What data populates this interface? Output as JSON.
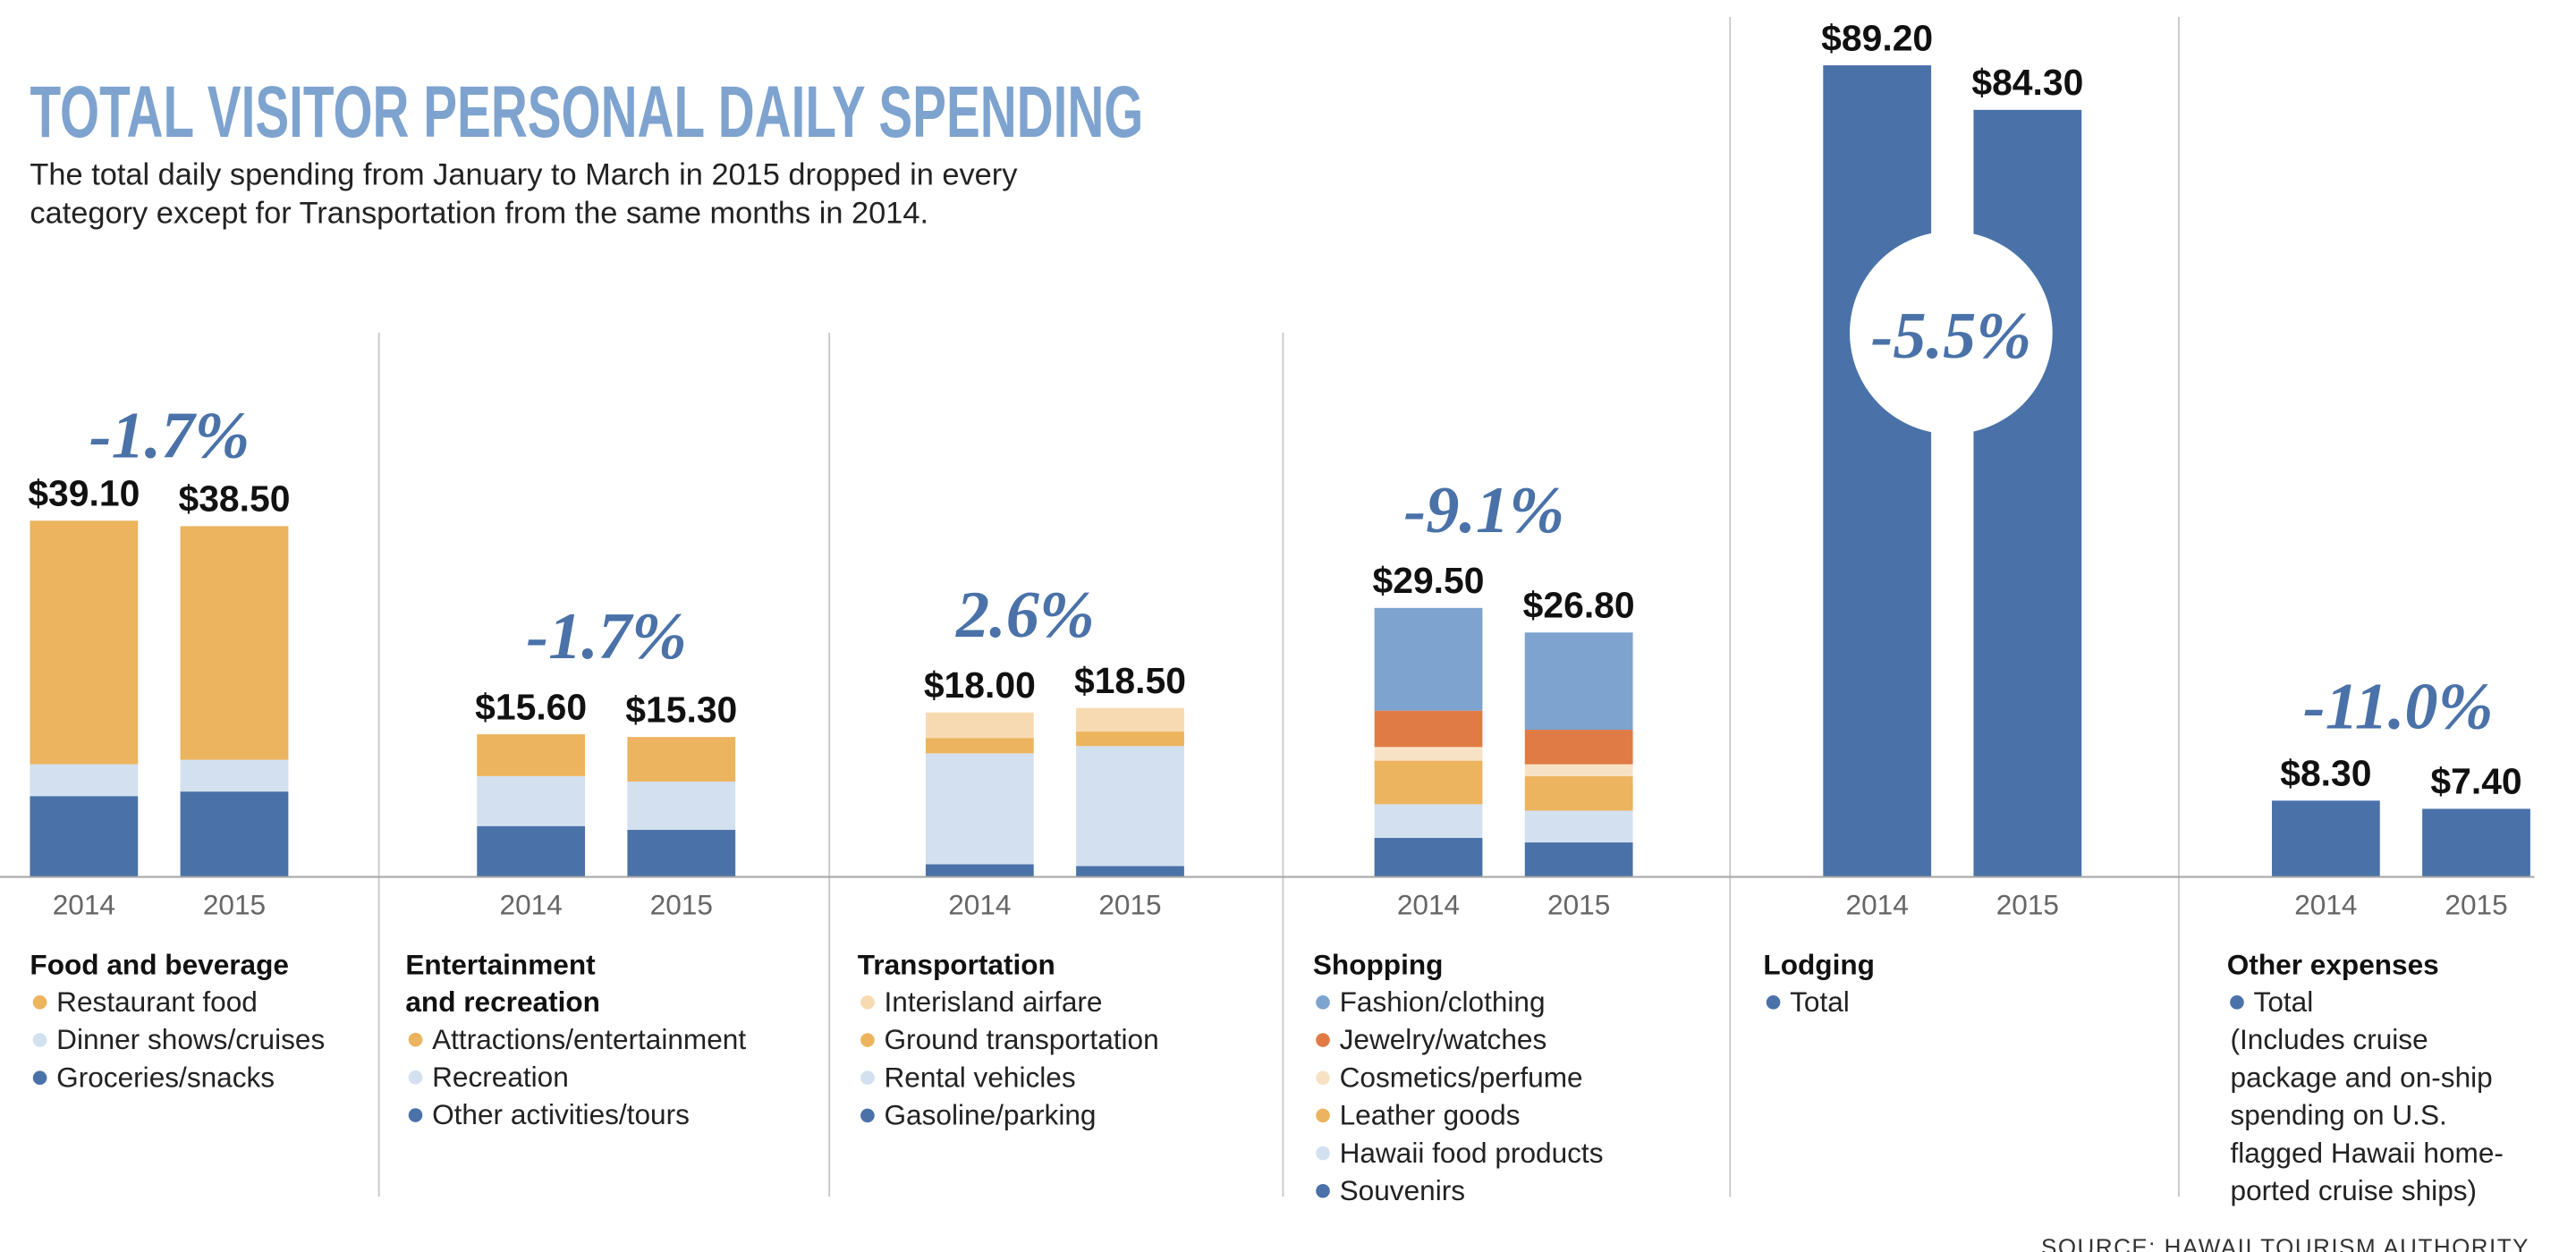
{
  "chart_data": {
    "type": "bar",
    "stacked": true,
    "title": "TOTAL VISITOR PERSONAL DAILY SPENDING",
    "subtitle": [
      "The total daily spending from January to March in 2015 dropped in every",
      "category except for Transportation from the same months in 2014."
    ],
    "source": "SOURCE: HAWAII TOURISM AUTHORITY",
    "unit": "USD per day",
    "grid": false,
    "panels": [
      {
        "title": [
          "Food and beverage"
        ],
        "change": "-1.7%",
        "categories": [
          "2014",
          "2015"
        ],
        "totals": [
          "$39.10",
          "$38.50"
        ],
        "total_values": [
          39.1,
          38.5
        ],
        "series": [
          {
            "name": "Groceries/snacks",
            "color": "#4a72a8",
            "values": [
              8.8,
              9.3
            ]
          },
          {
            "name": "Dinner shows/cruises",
            "color": "#d3e0f0",
            "values": [
              3.5,
              3.5
            ]
          },
          {
            "name": "Restaurant food",
            "color": "#ecb45f",
            "values": [
              26.8,
              25.7
            ]
          }
        ]
      },
      {
        "title": [
          "Entertainment",
          "and recreation"
        ],
        "change": "-1.7%",
        "categories": [
          "2014",
          "2015"
        ],
        "totals": [
          "$15.60",
          "$15.30"
        ],
        "total_values": [
          15.6,
          15.3
        ],
        "series": [
          {
            "name": "Other activities/tours",
            "color": "#4a72a8",
            "values": [
              5.5,
              5.1
            ]
          },
          {
            "name": "Recreation",
            "color": "#d3e0f0",
            "values": [
              5.5,
              5.3
            ]
          },
          {
            "name": "Attractions/entertainment",
            "color": "#ecb45f",
            "values": [
              4.6,
              4.9
            ]
          }
        ]
      },
      {
        "title": [
          "Transportation"
        ],
        "change": "2.6%",
        "categories": [
          "2014",
          "2015"
        ],
        "totals": [
          "$18.00",
          "$18.50"
        ],
        "total_values": [
          18.0,
          18.5
        ],
        "series": [
          {
            "name": "Gasoline/parking",
            "color": "#4a72a8",
            "values": [
              1.3,
              1.1
            ]
          },
          {
            "name": "Rental vehicles",
            "color": "#d3e0f0",
            "values": [
              12.2,
              13.2
            ]
          },
          {
            "name": "Ground transportation",
            "color": "#ecb45f",
            "values": [
              1.7,
              1.6
            ]
          },
          {
            "name": "Interisland airfare",
            "color": "#f8dab2",
            "values": [
              2.8,
              2.6
            ]
          }
        ]
      },
      {
        "title": [
          "Shopping"
        ],
        "change": "-9.1%",
        "categories": [
          "2014",
          "2015"
        ],
        "totals": [
          "$29.50",
          "$26.80"
        ],
        "total_values": [
          29.5,
          26.8
        ],
        "series": [
          {
            "name": "Souvenirs",
            "color": "#4a72a8",
            "values": [
              4.2,
              3.7
            ]
          },
          {
            "name": "Hawaii food products",
            "color": "#d3e0f0",
            "values": [
              3.7,
              3.5
            ]
          },
          {
            "name": "Leather goods",
            "color": "#ecb45f",
            "values": [
              4.8,
              3.8
            ]
          },
          {
            "name": "Cosmetics/perfume",
            "color": "#f8e2c6",
            "values": [
              1.5,
              1.3
            ]
          },
          {
            "name": "Jewelry/watches",
            "color": "#e07b45",
            "values": [
              4.0,
              3.8
            ]
          },
          {
            "name": "Fashion/clothing",
            "color": "#7ea3cf",
            "values": [
              11.3,
              10.7
            ]
          }
        ]
      },
      {
        "title": [
          "Lodging"
        ],
        "change": "-5.5%",
        "categories": [
          "2014",
          "2015"
        ],
        "totals": [
          "$89.20",
          "$84.30"
        ],
        "total_values": [
          89.2,
          84.3
        ],
        "series": [
          {
            "name": "Total",
            "color": "#4a72a8",
            "values": [
              89.2,
              84.3
            ]
          }
        ]
      },
      {
        "title": [
          "Other expenses"
        ],
        "change": "-11.0%",
        "categories": [
          "2014",
          "2015"
        ],
        "totals": [
          "$8.30",
          "$7.40"
        ],
        "total_values": [
          8.3,
          7.4
        ],
        "series": [
          {
            "name": "Total",
            "color": "#4a72a8",
            "values": [
              8.3,
              7.4
            ]
          }
        ],
        "note": [
          "(Includes cruise",
          "package and on-ship",
          "spending on U.S.",
          "flagged Hawaii home-",
          "ported cruise ships)"
        ]
      }
    ],
    "legend_order": [
      [
        "Restaurant food",
        "Dinner shows/cruises",
        "Groceries/snacks"
      ],
      [
        "Attractions/entertainment",
        "Recreation",
        "Other activities/tours"
      ],
      [
        "Interisland airfare",
        "Ground transportation",
        "Rental vehicles",
        "Gasoline/parking"
      ],
      [
        "Fashion/clothing",
        "Jewelry/watches",
        "Cosmetics/perfume",
        "Leather goods",
        "Hawaii food products",
        "Souvenirs"
      ],
      [
        "Total"
      ],
      [
        "Total"
      ]
    ],
    "colors": {
      "title": "#7ea3cf",
      "accent": "#4a72a8"
    }
  }
}
